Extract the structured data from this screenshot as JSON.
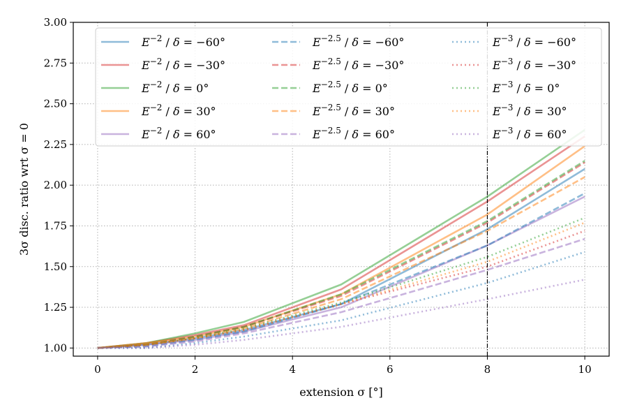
{
  "chart_data": {
    "type": "line",
    "xlabel": "extension σ [°]",
    "ylabel": "3σ disc. ratio wrt σ = 0",
    "xlim": [
      -0.5,
      10.5
    ],
    "ylim": [
      0.95,
      3.0
    ],
    "xticks": [
      0,
      2,
      4,
      6,
      8,
      10
    ],
    "xtick_labels": [
      "0",
      "2",
      "4",
      "6",
      "8",
      "10"
    ],
    "yticks": [
      1.0,
      1.25,
      1.5,
      1.75,
      2.0,
      2.25,
      2.5,
      2.75,
      3.0
    ],
    "ytick_labels": [
      "1.00",
      "1.25",
      "1.50",
      "1.75",
      "2.00",
      "2.25",
      "2.50",
      "2.75",
      "3.00"
    ],
    "grid": true,
    "legend_position": "top",
    "vline": {
      "x": 8,
      "color": "#000000",
      "style": "dashdot"
    },
    "x": [
      0,
      1,
      2,
      3,
      5,
      8,
      10
    ],
    "series": [
      {
        "name": "E^{-2} / δ = −60°",
        "index_label": "E",
        "exp": "−2",
        "dec": "−60°",
        "color": "#1f77b4",
        "dash": "solid",
        "values": [
          1.0,
          1.02,
          1.06,
          1.11,
          1.27,
          1.73,
          2.1
        ]
      },
      {
        "name": "E^{-2} / δ = −30°",
        "index_label": "E",
        "exp": "−2",
        "dec": "−30°",
        "color": "#d62728",
        "dash": "solid",
        "values": [
          1.0,
          1.03,
          1.08,
          1.14,
          1.36,
          1.9,
          2.3
        ]
      },
      {
        "name": "E^{-2} / δ = 0°",
        "index_label": "E",
        "exp": "−2",
        "dec": "0°",
        "color": "#2ca02c",
        "dash": "solid",
        "values": [
          1.0,
          1.03,
          1.09,
          1.16,
          1.39,
          1.93,
          2.34
        ]
      },
      {
        "name": "E^{-2} / δ = 30°",
        "index_label": "E",
        "exp": "−2",
        "dec": "30°",
        "color": "#ff7f0e",
        "dash": "solid",
        "values": [
          1.0,
          1.03,
          1.07,
          1.13,
          1.33,
          1.82,
          2.24
        ]
      },
      {
        "name": "E^{-2} / δ = 60°",
        "index_label": "E",
        "exp": "−2",
        "dec": "60°",
        "color": "#9467bd",
        "dash": "solid",
        "values": [
          1.0,
          1.02,
          1.05,
          1.1,
          1.25,
          1.63,
          1.93
        ]
      },
      {
        "name": "E^{-2.5} / δ = −60°",
        "index_label": "E",
        "exp": "−2.5",
        "dec": "−60°",
        "color": "#1f77b4",
        "dash": "dashed",
        "values": [
          1.0,
          1.01,
          1.05,
          1.1,
          1.27,
          1.63,
          1.95
        ]
      },
      {
        "name": "E^{-2.5} / δ = −30°",
        "index_label": "E",
        "exp": "−2.5",
        "dec": "−30°",
        "color": "#d62728",
        "dash": "dashed",
        "values": [
          1.0,
          1.02,
          1.07,
          1.13,
          1.32,
          1.77,
          2.14
        ]
      },
      {
        "name": "E^{-2.5} / δ = 0°",
        "index_label": "E",
        "exp": "−2.5",
        "dec": "0°",
        "color": "#2ca02c",
        "dash": "dashed",
        "values": [
          1.0,
          1.02,
          1.07,
          1.13,
          1.33,
          1.78,
          2.15
        ]
      },
      {
        "name": "E^{-2.5} / δ = 30°",
        "index_label": "E",
        "exp": "−2.5",
        "dec": "30°",
        "color": "#ff7f0e",
        "dash": "dashed",
        "values": [
          1.0,
          1.02,
          1.06,
          1.12,
          1.3,
          1.72,
          2.05
        ]
      },
      {
        "name": "E^{-2.5} / δ = 60°",
        "index_label": "E",
        "exp": "−2.5",
        "dec": "60°",
        "color": "#9467bd",
        "dash": "dashed",
        "values": [
          1.0,
          1.01,
          1.04,
          1.09,
          1.22,
          1.48,
          1.67
        ]
      },
      {
        "name": "E^{-3} / δ = −60°",
        "index_label": "E",
        "exp": "−3",
        "dec": "−60°",
        "color": "#1f77b4",
        "dash": "dotted",
        "values": [
          1.0,
          1.0,
          1.03,
          1.07,
          1.17,
          1.4,
          1.59
        ]
      },
      {
        "name": "E^{-3} / δ = −30°",
        "index_label": "E",
        "exp": "−3",
        "dec": "−30°",
        "color": "#d62728",
        "dash": "dotted",
        "values": [
          1.0,
          1.02,
          1.06,
          1.11,
          1.27,
          1.5,
          1.72
        ]
      },
      {
        "name": "E^{-3} / δ = 0°",
        "index_label": "E",
        "exp": "−3",
        "dec": "0°",
        "color": "#2ca02c",
        "dash": "dotted",
        "values": [
          1.0,
          1.02,
          1.06,
          1.12,
          1.28,
          1.56,
          1.8
        ]
      },
      {
        "name": "E^{-3} / δ = 30°",
        "index_label": "E",
        "exp": "−3",
        "dec": "30°",
        "color": "#ff7f0e",
        "dash": "dotted",
        "values": [
          1.0,
          1.02,
          1.06,
          1.11,
          1.27,
          1.53,
          1.77
        ]
      },
      {
        "name": "E^{-3} / δ = 60°",
        "index_label": "E",
        "exp": "−3",
        "dec": "60°",
        "color": "#9467bd",
        "dash": "dotted",
        "values": [
          1.0,
          1.0,
          1.02,
          1.05,
          1.13,
          1.3,
          1.42
        ]
      }
    ]
  }
}
